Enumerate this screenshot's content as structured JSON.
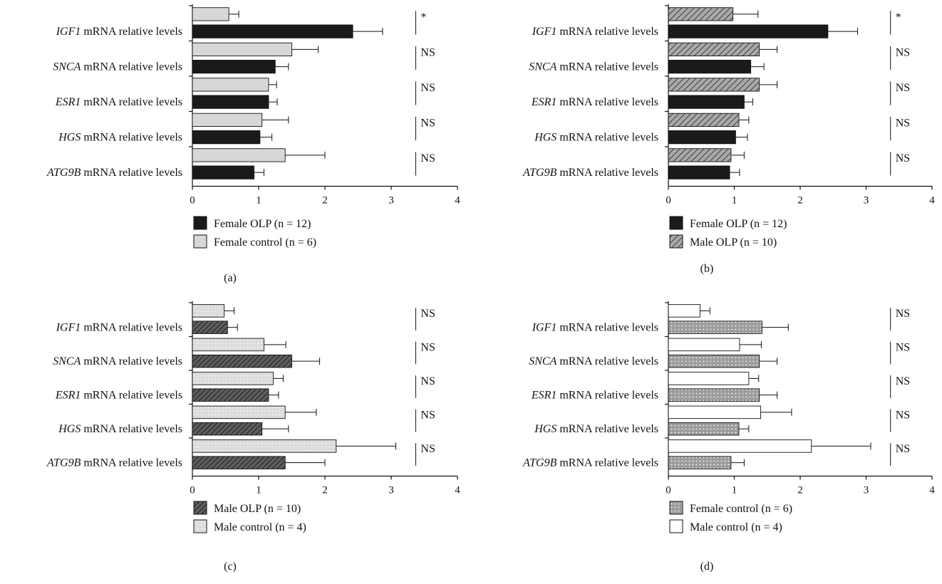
{
  "chart_data": [
    {
      "panel_label": "(a)",
      "type": "bar",
      "orientation": "horizontal",
      "xlim": [
        0,
        4
      ],
      "x_ticks": [
        "0",
        "1",
        "2",
        "3",
        "4"
      ],
      "category_suffix": "mRNA relative levels",
      "categories": [
        "IGF1",
        "SNCA",
        "ESR1",
        "HGS",
        "ATG9B"
      ],
      "significance": [
        "*",
        "NS",
        "NS",
        "NS",
        "NS"
      ],
      "series": [
        {
          "name": "Female control",
          "n_label": "(n = 6)",
          "pattern": "solid-gray",
          "values": [
            0.55,
            1.5,
            1.15,
            1.05,
            1.4
          ],
          "errors": [
            0.15,
            0.4,
            0.12,
            0.4,
            0.6
          ]
        },
        {
          "name": "Female OLP",
          "n_label": "(n = 12)",
          "pattern": "solid-black",
          "values": [
            2.42,
            1.25,
            1.15,
            1.02,
            0.93
          ],
          "errors": [
            0.45,
            0.2,
            0.13,
            0.18,
            0.15
          ]
        }
      ],
      "legend": [
        {
          "text": "Female OLP",
          "n_label": "(n = 12)",
          "pattern": "solid-black"
        },
        {
          "text": "Female control",
          "n_label": "(n = 6)",
          "pattern": "solid-gray"
        }
      ]
    },
    {
      "panel_label": "(b)",
      "type": "bar",
      "orientation": "horizontal",
      "xlim": [
        0,
        4
      ],
      "x_ticks": [
        "0",
        "1",
        "2",
        "3",
        "4"
      ],
      "category_suffix": "mRNA relative levels",
      "categories": [
        "IGF1",
        "SNCA",
        "ESR1",
        "HGS",
        "ATG9B"
      ],
      "significance": [
        "*",
        "NS",
        "NS",
        "NS",
        "NS"
      ],
      "series": [
        {
          "name": "Male OLP",
          "n_label": "(n = 10)",
          "pattern": "hatch-gray",
          "values": [
            0.98,
            1.38,
            1.38,
            1.07,
            0.95
          ],
          "errors": [
            0.38,
            0.27,
            0.27,
            0.15,
            0.2
          ]
        },
        {
          "name": "Female OLP",
          "n_label": "(n = 12)",
          "pattern": "solid-black",
          "values": [
            2.42,
            1.25,
            1.15,
            1.02,
            0.93
          ],
          "errors": [
            0.45,
            0.2,
            0.13,
            0.18,
            0.15
          ]
        }
      ],
      "legend": [
        {
          "text": "Female OLP",
          "n_label": "(n = 12)",
          "pattern": "solid-black"
        },
        {
          "text": "Male OLP",
          "n_label": "(n = 10)",
          "pattern": "hatch-gray"
        }
      ]
    },
    {
      "panel_label": "(c)",
      "type": "bar",
      "orientation": "horizontal",
      "xlim": [
        0,
        4
      ],
      "x_ticks": [
        "0",
        "1",
        "2",
        "3",
        "4"
      ],
      "category_suffix": "mRNA relative levels",
      "categories": [
        "IGF1",
        "SNCA",
        "ESR1",
        "HGS",
        "ATG9B"
      ],
      "significance": [
        "NS",
        "NS",
        "NS",
        "NS",
        "NS"
      ],
      "series": [
        {
          "name": "Male control",
          "n_label": "(n = 4)",
          "pattern": "dots-light",
          "values": [
            0.48,
            1.08,
            1.22,
            1.4,
            2.17
          ],
          "errors": [
            0.15,
            0.33,
            0.15,
            0.47,
            0.9
          ]
        },
        {
          "name": "Male OLP",
          "n_label": "(n = 10)",
          "pattern": "hatch-dark",
          "values": [
            0.53,
            1.5,
            1.15,
            1.05,
            1.4
          ],
          "errors": [
            0.15,
            0.42,
            0.15,
            0.4,
            0.6
          ]
        }
      ],
      "legend": [
        {
          "text": "Male OLP",
          "n_label": "(n = 10)",
          "pattern": "hatch-dark"
        },
        {
          "text": "Male control",
          "n_label": "(n = 4)",
          "pattern": "dots-light"
        }
      ]
    },
    {
      "panel_label": "(d)",
      "type": "bar",
      "orientation": "horizontal",
      "xlim": [
        0,
        4
      ],
      "x_ticks": [
        "0",
        "1",
        "2",
        "3",
        "4"
      ],
      "category_suffix": "mRNA relative levels",
      "categories": [
        "IGF1",
        "SNCA",
        "ESR1",
        "HGS",
        "ATG9B"
      ],
      "significance": [
        "NS",
        "NS",
        "NS",
        "NS",
        "NS"
      ],
      "series": [
        {
          "name": "Male control",
          "n_label": "(n = 4)",
          "pattern": "white",
          "values": [
            0.48,
            1.08,
            1.22,
            1.4,
            2.17
          ],
          "errors": [
            0.15,
            0.33,
            0.15,
            0.47,
            0.9
          ]
        },
        {
          "name": "Female control",
          "n_label": "(n = 6)",
          "pattern": "dots-gray",
          "values": [
            1.42,
            1.38,
            1.38,
            1.07,
            0.95
          ],
          "errors": [
            0.4,
            0.27,
            0.27,
            0.15,
            0.2
          ]
        }
      ],
      "legend": [
        {
          "text": "Female control",
          "n_label": "(n = 6)",
          "pattern": "dots-gray"
        },
        {
          "text": "Male control",
          "n_label": "(n = 4)",
          "pattern": "white"
        }
      ]
    }
  ]
}
